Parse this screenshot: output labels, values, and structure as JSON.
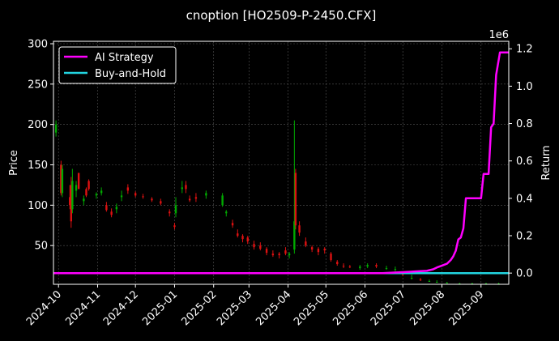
{
  "chart_data": {
    "type": "line",
    "title": "cnoption [HO2509-P-2450.CFX]",
    "ylabel_left": "Price",
    "ylabel_right": "Return",
    "right_axis_multiplier": "1e6",
    "x_tick_labels": [
      "2024-10",
      "2024-11",
      "2024-12",
      "2025-01",
      "2025-02",
      "2025-03",
      "2025-04",
      "2025-05",
      "2025-06",
      "2025-07",
      "2025-08",
      "2025-09"
    ],
    "x_tick_dates": [
      "2024-10-01",
      "2024-11-01",
      "2024-12-01",
      "2025-01-01",
      "2025-02-01",
      "2025-03-01",
      "2025-04-01",
      "2025-05-01",
      "2025-06-01",
      "2025-07-01",
      "2025-08-01",
      "2025-09-01"
    ],
    "x_range": [
      "2024-09-27",
      "2025-09-23"
    ],
    "y_left_ticks": [
      50,
      100,
      150,
      200,
      250,
      300
    ],
    "y_left_range": [
      2,
      303
    ],
    "y_right_ticks": [
      0.0,
      0.2,
      0.4,
      0.6,
      0.8,
      1.0,
      1.2
    ],
    "y_right_range": [
      -0.06,
      1.24
    ],
    "grid": true,
    "legend_position": "top-left",
    "colors": {
      "up": "#00aa00",
      "down": "#dd1111",
      "ai": "#ff00ff",
      "bh": "#22d4e0",
      "grid": "#555555"
    },
    "series": [
      {
        "name": "AI Strategy",
        "axis": "right",
        "color": "#ff00ff",
        "points": [
          [
            "2024-09-27",
            0.0
          ],
          [
            "2025-06-15",
            0.0
          ],
          [
            "2025-07-01",
            0.005
          ],
          [
            "2025-07-15",
            0.01
          ],
          [
            "2025-07-20",
            0.012
          ],
          [
            "2025-07-25",
            0.02
          ],
          [
            "2025-07-28",
            0.03
          ],
          [
            "2025-08-01",
            0.04
          ],
          [
            "2025-08-05",
            0.05
          ],
          [
            "2025-08-08",
            0.07
          ],
          [
            "2025-08-10",
            0.09
          ],
          [
            "2025-08-12",
            0.12
          ],
          [
            "2025-08-14",
            0.18
          ],
          [
            "2025-08-16",
            0.19
          ],
          [
            "2025-08-18",
            0.24
          ],
          [
            "2025-08-20",
            0.4
          ],
          [
            "2025-08-27",
            0.4
          ],
          [
            "2025-09-01",
            0.4
          ],
          [
            "2025-09-03",
            0.53
          ],
          [
            "2025-09-05",
            0.53
          ],
          [
            "2025-09-07",
            0.53
          ],
          [
            "2025-09-09",
            0.78
          ],
          [
            "2025-09-11",
            0.8
          ],
          [
            "2025-09-13",
            1.06
          ],
          [
            "2025-09-16",
            1.18
          ],
          [
            "2025-09-23",
            1.18
          ]
        ]
      },
      {
        "name": "Buy-and-Hold",
        "axis": "right",
        "color": "#22d4e0",
        "points": [
          [
            "2024-09-27",
            0.0
          ],
          [
            "2025-09-23",
            0.0
          ]
        ]
      }
    ],
    "candles": [
      [
        "2024-09-29",
        190,
        205,
        185,
        200
      ],
      [
        "2024-10-03",
        150,
        155,
        112,
        115
      ],
      [
        "2024-10-04",
        115,
        150,
        110,
        145
      ],
      [
        "2024-10-10",
        110,
        125,
        95,
        100
      ],
      [
        "2024-10-11",
        125,
        135,
        72,
        80
      ],
      [
        "2024-10-12",
        95,
        145,
        90,
        130
      ],
      [
        "2024-10-15",
        118,
        130,
        110,
        125
      ],
      [
        "2024-10-17",
        140,
        140,
        120,
        120
      ],
      [
        "2024-10-21",
        105,
        112,
        100,
        108
      ],
      [
        "2024-10-23",
        120,
        122,
        110,
        112
      ],
      [
        "2024-10-25",
        130,
        132,
        118,
        120
      ],
      [
        "2024-10-31",
        112,
        116,
        108,
        114
      ],
      [
        "2024-11-04",
        115,
        122,
        112,
        118
      ],
      [
        "2024-11-08",
        100,
        104,
        92,
        94
      ],
      [
        "2024-11-12",
        92,
        96,
        85,
        88
      ],
      [
        "2024-11-16",
        95,
        102,
        90,
        98
      ],
      [
        "2024-11-20",
        110,
        118,
        105,
        112
      ],
      [
        "2024-11-25",
        122,
        126,
        114,
        118
      ],
      [
        "2024-12-01",
        115,
        117,
        110,
        112
      ],
      [
        "2024-12-07",
        111,
        114,
        108,
        110
      ],
      [
        "2024-12-14",
        108,
        110,
        104,
        106
      ],
      [
        "2024-12-21",
        105,
        108,
        100,
        102
      ],
      [
        "2024-12-28",
        92,
        95,
        86,
        90
      ],
      [
        "2025-01-01",
        75,
        78,
        70,
        73
      ],
      [
        "2025-01-02",
        90,
        110,
        85,
        100
      ],
      [
        "2025-01-07",
        120,
        130,
        115,
        122
      ],
      [
        "2025-01-10",
        125,
        130,
        115,
        120
      ],
      [
        "2025-01-13",
        108,
        112,
        104,
        106
      ],
      [
        "2025-01-18",
        110,
        115,
        104,
        108
      ],
      [
        "2025-01-26",
        112,
        118,
        108,
        115
      ],
      [
        "2025-02-08",
        100,
        115,
        98,
        112
      ],
      [
        "2025-02-11",
        90,
        94,
        86,
        92
      ],
      [
        "2025-02-16",
        78,
        82,
        72,
        75
      ],
      [
        "2025-02-20",
        65,
        70,
        60,
        62
      ],
      [
        "2025-02-24",
        62,
        64,
        54,
        58
      ],
      [
        "2025-02-28",
        60,
        62,
        52,
        55
      ],
      [
        "2025-03-05",
        52,
        56,
        45,
        48
      ],
      [
        "2025-03-10",
        50,
        54,
        44,
        46
      ],
      [
        "2025-03-15",
        46,
        48,
        38,
        41
      ],
      [
        "2025-03-20",
        40,
        44,
        36,
        38
      ],
      [
        "2025-03-25",
        40,
        42,
        34,
        38
      ],
      [
        "2025-03-30",
        44,
        48,
        38,
        40
      ],
      [
        "2025-04-02",
        38,
        42,
        34,
        40
      ],
      [
        "2025-04-06",
        45,
        205,
        40,
        80
      ],
      [
        "2025-04-07",
        140,
        145,
        70,
        75
      ],
      [
        "2025-04-10",
        75,
        80,
        62,
        66
      ],
      [
        "2025-04-15",
        55,
        60,
        48,
        50
      ],
      [
        "2025-04-20",
        48,
        50,
        42,
        45
      ],
      [
        "2025-04-25",
        46,
        48,
        38,
        42
      ],
      [
        "2025-04-30",
        46,
        48,
        40,
        44
      ],
      [
        "2025-05-05",
        40,
        42,
        30,
        32
      ],
      [
        "2025-05-10",
        30,
        32,
        25,
        27
      ],
      [
        "2025-05-15",
        25,
        28,
        22,
        24
      ],
      [
        "2025-05-20",
        24,
        26,
        22,
        23
      ],
      [
        "2025-05-28",
        22,
        26,
        20,
        24
      ],
      [
        "2025-06-03",
        24,
        28,
        22,
        26
      ],
      [
        "2025-06-10",
        26,
        28,
        22,
        24
      ],
      [
        "2025-06-18",
        22,
        25,
        20,
        22
      ],
      [
        "2025-06-25",
        20,
        24,
        18,
        21
      ],
      [
        "2025-07-01",
        16,
        18,
        12,
        14
      ],
      [
        "2025-07-08",
        10,
        14,
        8,
        10
      ],
      [
        "2025-07-15",
        8,
        10,
        6,
        7
      ],
      [
        "2025-07-22",
        6,
        8,
        5,
        6
      ],
      [
        "2025-07-28",
        5,
        7,
        4,
        5
      ],
      [
        "2025-08-05",
        4,
        5,
        3,
        4
      ],
      [
        "2025-08-15",
        3,
        4,
        2,
        3
      ],
      [
        "2025-08-25",
        3,
        4,
        2,
        3
      ],
      [
        "2025-09-05",
        3,
        4,
        2,
        3
      ],
      [
        "2025-09-15",
        3,
        4,
        2,
        3
      ]
    ]
  }
}
